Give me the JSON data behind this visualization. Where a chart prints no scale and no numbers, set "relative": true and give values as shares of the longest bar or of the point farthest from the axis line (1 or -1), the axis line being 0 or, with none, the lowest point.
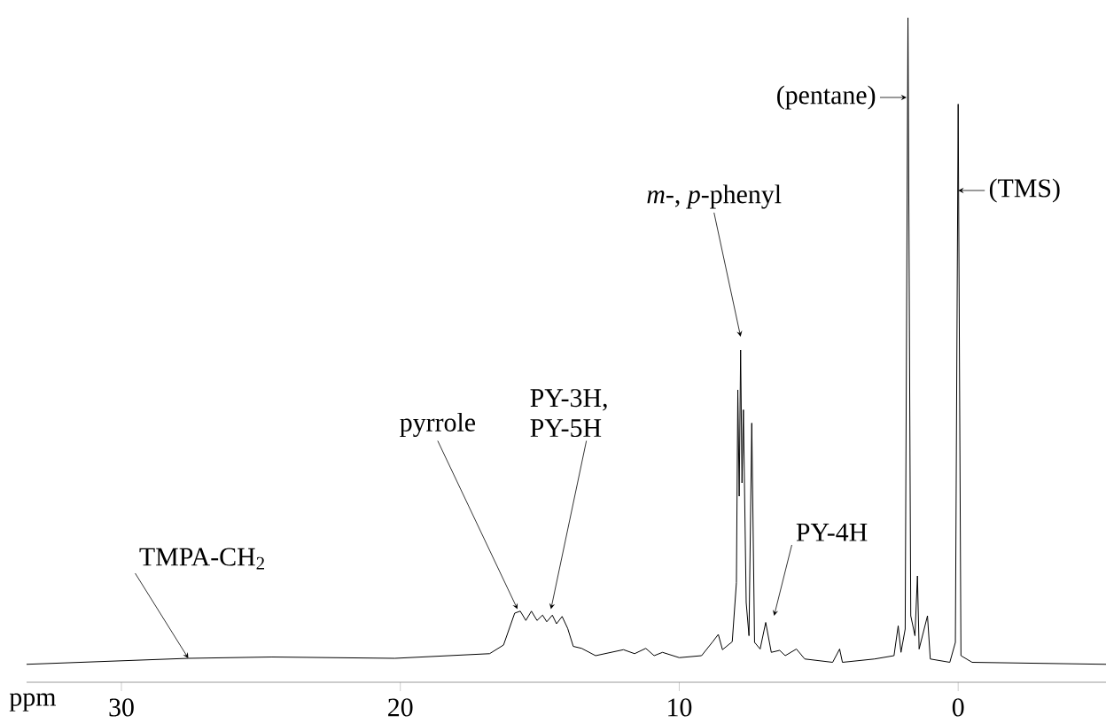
{
  "chart_data": {
    "type": "line",
    "relative": true,
    "xlabel": "ppm",
    "xlim": [
      33.4,
      -5.3
    ],
    "xticks": [
      30,
      20,
      10,
      0
    ],
    "color": "#000000",
    "x": [
      33.4,
      27.6,
      24.6,
      20.2,
      16.8,
      16.3,
      15.9,
      15.7,
      15.5,
      15.3,
      15.1,
      14.9,
      14.75,
      14.55,
      14.4,
      14.2,
      14.0,
      13.8,
      13.5,
      13.0,
      12.0,
      11.6,
      11.2,
      10.9,
      10.6,
      10.0,
      9.2,
      8.8,
      8.6,
      8.45,
      8.1,
      7.95,
      7.9,
      7.85,
      7.8,
      7.75,
      7.7,
      7.6,
      7.5,
      7.4,
      7.3,
      7.1,
      6.9,
      6.7,
      6.4,
      6.2,
      5.8,
      5.5,
      4.5,
      4.25,
      4.15,
      3.0,
      2.3,
      2.15,
      2.05,
      1.9,
      1.8,
      1.7,
      1.55,
      1.46,
      1.4,
      1.1,
      1.0,
      0.3,
      0.1,
      0.0,
      -0.1,
      -0.5,
      -5.3
    ],
    "values": [
      0.027,
      0.036,
      0.038,
      0.036,
      0.043,
      0.056,
      0.104,
      0.107,
      0.093,
      0.107,
      0.093,
      0.101,
      0.091,
      0.101,
      0.088,
      0.099,
      0.081,
      0.054,
      0.051,
      0.04,
      0.049,
      0.043,
      0.051,
      0.04,
      0.045,
      0.037,
      0.04,
      0.061,
      0.072,
      0.049,
      0.061,
      0.15,
      0.44,
      0.28,
      0.5,
      0.3,
      0.41,
      0.12,
      0.07,
      0.39,
      0.06,
      0.05,
      0.09,
      0.045,
      0.048,
      0.04,
      0.05,
      0.035,
      0.03,
      0.05,
      0.03,
      0.035,
      0.04,
      0.085,
      0.045,
      0.08,
      1.0,
      0.1,
      0.07,
      0.16,
      0.05,
      0.1,
      0.035,
      0.03,
      0.06,
      0.87,
      0.04,
      0.03,
      0.027
    ],
    "annotations": [
      {
        "text": "TMPA-CH$_{2}$",
        "x": 27.6,
        "y": 0.036
      },
      {
        "text": "pyrrole",
        "x": 15.8,
        "y": 0.11
      },
      {
        "text": "PY-3H, PY-5H",
        "x": 14.6,
        "y": 0.11
      },
      {
        "text": "*m*-, *p*-phenyl",
        "x": 7.8,
        "y": 0.52
      },
      {
        "text": "PY-4H",
        "x": 6.6,
        "y": 0.1
      },
      {
        "text": "(pentane)",
        "x": 1.85,
        "y": 0.88
      },
      {
        "text": "(TMS)",
        "x": 0.0,
        "y": 0.74
      }
    ]
  }
}
